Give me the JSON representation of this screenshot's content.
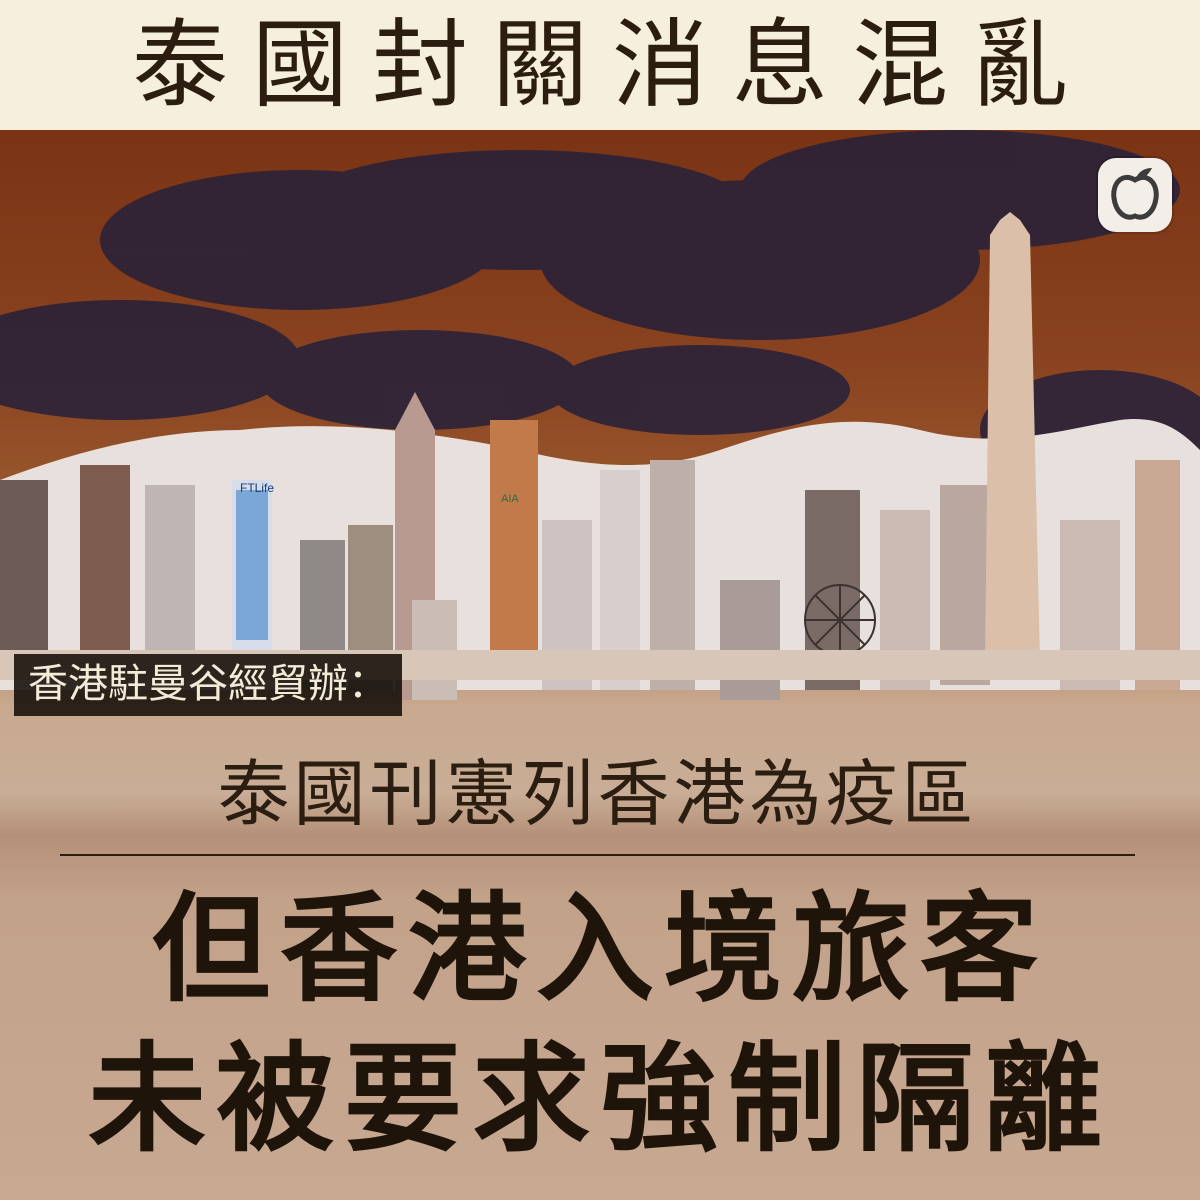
{
  "headline": "泰國封關消息混亂",
  "photo": {
    "subject": "inverted-color-skyline-photo"
  },
  "logo": {
    "icon": "apple-daily-logo-icon"
  },
  "sub_label": "香港駐曼谷經貿辦：",
  "deck_line": "泰國刊憲列香港為疫區",
  "main_headline": {
    "line1": "但香港入境旅客",
    "line2": "未被要求強制隔離"
  },
  "signs": {
    "ftlife": "FTLife",
    "aia": "AIA"
  },
  "colors": {
    "background": "#f6efdd",
    "sky": "#7a3414",
    "text": "#2b1d10"
  }
}
